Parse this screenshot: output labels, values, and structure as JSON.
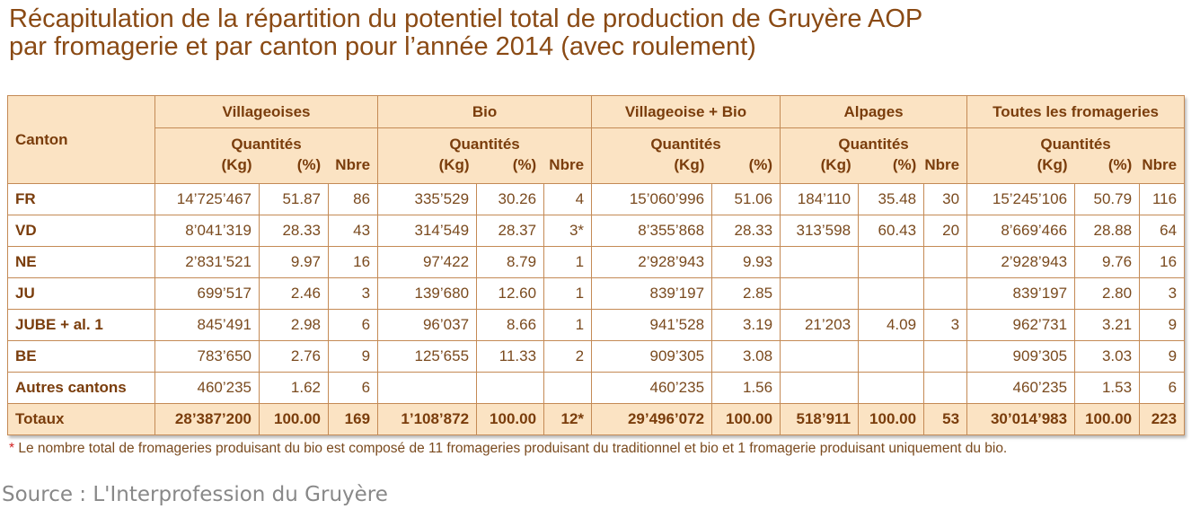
{
  "title_line1": "Récapitulation de la répartition du potentiel total de production de Gruyère AOP",
  "title_line2": "par fromagerie et par canton pour l’année 2014 (avec roulement)",
  "headers": {
    "canton": "Canton",
    "groups": [
      "Villageoises",
      "Bio",
      "Villageoise + Bio",
      "Alpages",
      "Toutes les fromageries"
    ],
    "quantites": "Quantités",
    "kg": "(Kg)",
    "pct": "(%)",
    "nbre": "Nbre"
  },
  "rows": [
    {
      "canton": "FR",
      "v": [
        "14’725’467",
        "51.87",
        "86",
        "335’529",
        "30.26",
        "4",
        "15’060’996",
        "51.06",
        "184’110",
        "35.48",
        "30",
        "15’245’106",
        "50.79",
        "116"
      ]
    },
    {
      "canton": "VD",
      "v": [
        "8’041’319",
        "28.33",
        "43",
        "314’549",
        "28.37",
        "3*",
        "8’355’868",
        "28.33",
        "313’598",
        "60.43",
        "20",
        "8’669’466",
        "28.88",
        "64"
      ]
    },
    {
      "canton": "NE",
      "v": [
        "2’831’521",
        "9.97",
        "16",
        "97’422",
        "8.79",
        "1",
        "2’928’943",
        "9.93",
        "",
        "",
        "",
        "2’928’943",
        "9.76",
        "16"
      ]
    },
    {
      "canton": "JU",
      "v": [
        "699’517",
        "2.46",
        "3",
        "139’680",
        "12.60",
        "1",
        "839’197",
        "2.85",
        "",
        "",
        "",
        "839’197",
        "2.80",
        "3"
      ]
    },
    {
      "canton": "JUBE + al. 1",
      "v": [
        "845’491",
        "2.98",
        "6",
        "96’037",
        "8.66",
        "1",
        "941’528",
        "3.19",
        "21’203",
        "4.09",
        "3",
        "962’731",
        "3.21",
        "9"
      ]
    },
    {
      "canton": "BE",
      "v": [
        "783’650",
        "2.76",
        "9",
        "125’655",
        "11.33",
        "2",
        "909’305",
        "3.08",
        "",
        "",
        "",
        "909’305",
        "3.03",
        "9"
      ]
    },
    {
      "canton": "Autres cantons",
      "v": [
        "460’235",
        "1.62",
        "6",
        "",
        "",
        "",
        "460’235",
        "1.56",
        "",
        "",
        "",
        "460’235",
        "1.53",
        "6"
      ]
    }
  ],
  "totals": {
    "canton": "Totaux",
    "v": [
      "28’387’200",
      "100.00",
      "169",
      "1’108’872",
      "100.00",
      "12*",
      "29’496’072",
      "100.00",
      "518’911",
      "100.00",
      "53",
      "30’014’983",
      "100.00",
      "223"
    ]
  },
  "footnote_star": "*",
  "footnote": " Le nombre total de fromageries produisant du bio est composé de 11 fromageries produisant du traditionnel et bio et 1 fromagerie produisant uniquement du bio.",
  "source": "Source : L'Interprofession du Gruyère",
  "colors": {
    "title": "#8a4a14",
    "header_bg": "#fbe3c3",
    "border": "#c48a55",
    "star": "#d21f1f"
  }
}
